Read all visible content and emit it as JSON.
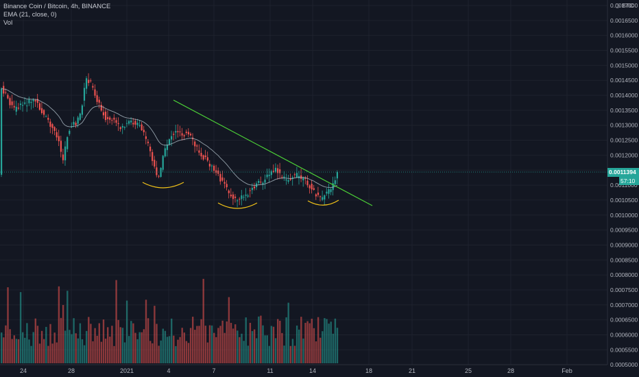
{
  "legend": {
    "symbol": "Binance Coin / Bitcoin, 4h, BINANCE",
    "ema": "EMA (21, close, 0)",
    "vol": "Vol"
  },
  "currency_label": "BTC",
  "last_price": "0.0011394",
  "countdown": "57:10",
  "colors": {
    "background": "#131722",
    "up": "#26a69a",
    "down": "#ef5350",
    "trendline": "#4cd137",
    "ema": "#aab8c2",
    "arc": "#f5c518"
  },
  "price_axis_labels": [
    "0.0017000",
    "0.0016500",
    "0.0016000",
    "0.0015500",
    "0.0015000",
    "0.0014500",
    "0.0014000",
    "0.0013500",
    "0.0013000",
    "0.0012500",
    "0.0012000",
    "0.0011500",
    "0.0011000",
    "0.0010500",
    "0.0010000",
    "0.0009500",
    "0.0009000",
    "0.0008500",
    "0.0008000",
    "0.0007500",
    "0.0007000",
    "0.0006500",
    "0.0006000",
    "0.0005500",
    "0.0005000"
  ],
  "date_labels": [
    "24",
    "28",
    "2021",
    "4",
    "7",
    "11",
    "14",
    "18",
    "21",
    "25",
    "28",
    "Feb"
  ],
  "chart_data": {
    "type": "candlestick",
    "price_range": [
      0.0005,
      0.0017
    ],
    "ema_period": 21,
    "last_price": 0.0011394,
    "trendline": {
      "from": {
        "date": "2021-01-04",
        "price": 0.001378
      },
      "to": {
        "date": "2021-01-17",
        "price": 0.001022
      }
    }
  }
}
